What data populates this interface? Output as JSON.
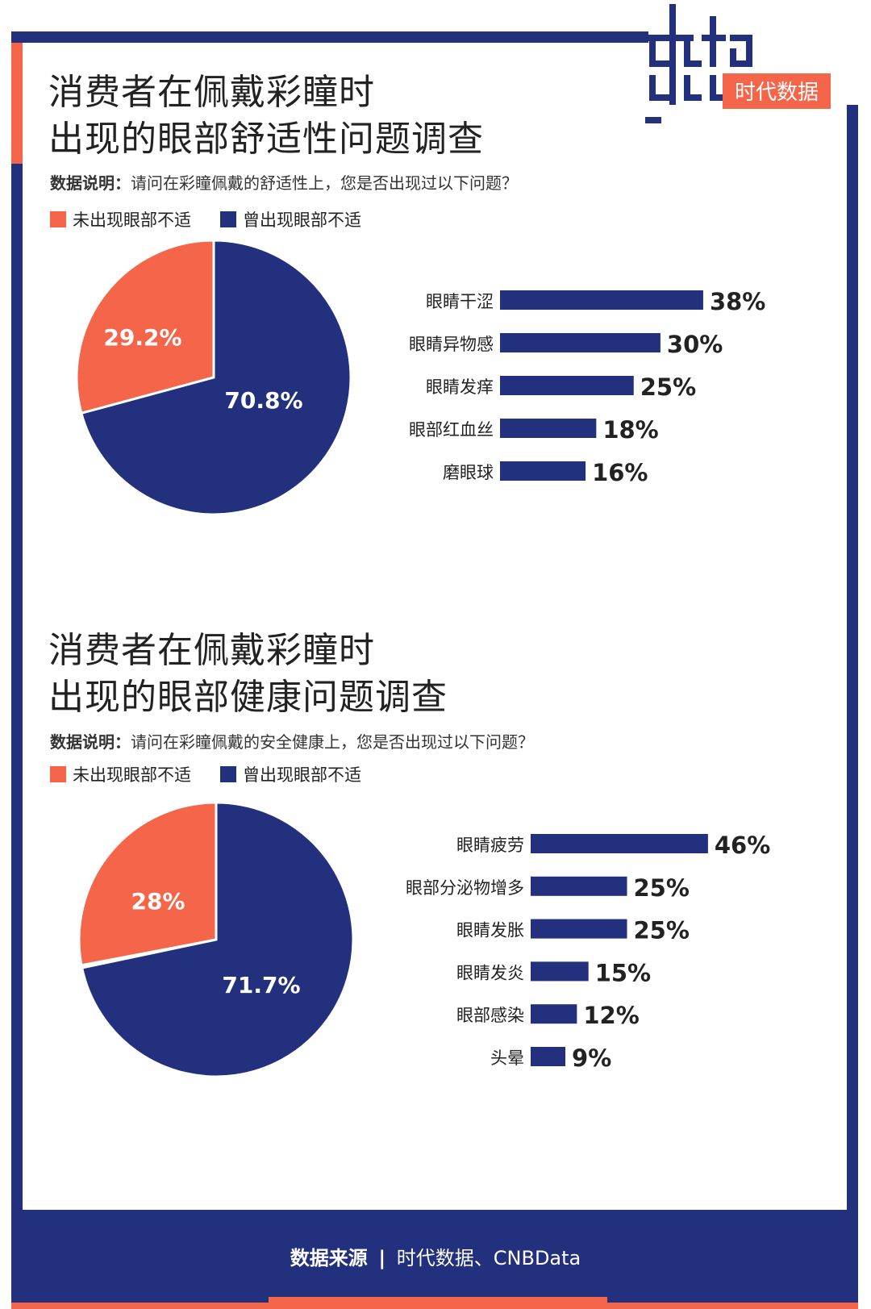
{
  "brand": {
    "logo_text": "data good",
    "logo_cn": "时代数据"
  },
  "colors": {
    "blue": "#22307e",
    "orange": "#f5654a"
  },
  "section1": {
    "title_line1": "消费者在佩戴彩瞳时",
    "title_line2": "出现的眼部舒适性问题调查",
    "note_label": "数据说明：",
    "note_text": "请问在彩瞳佩戴的舒适性上，您是否出现过以下问题？",
    "legend": [
      "未出现眼部不适",
      "曾出现眼部不适"
    ]
  },
  "section2": {
    "title_line1": "消费者在佩戴彩瞳时",
    "title_line2": "出现的眼部健康问题调查",
    "note_label": "数据说明：",
    "note_text": "请问在彩瞳佩戴的安全健康上，您是否出现过以下问题？",
    "legend": [
      "未出现眼部不适",
      "曾出现眼部不适"
    ]
  },
  "chart_data": [
    {
      "type": "pie",
      "categories": [
        "未出现眼部不适",
        "曾出现眼部不适"
      ],
      "values": [
        29.2,
        70.8
      ],
      "labels": [
        "29.2%",
        "70.8%"
      ],
      "colors": [
        "#f5654a",
        "#22307e"
      ]
    },
    {
      "type": "bar",
      "orientation": "horizontal",
      "categories": [
        "眼睛干涩",
        "眼睛异物感",
        "眼睛发痒",
        "眼部红血丝",
        "磨眼球"
      ],
      "values": [
        38,
        30,
        25,
        18,
        16
      ],
      "labels": [
        "38%",
        "30%",
        "25%",
        "18%",
        "16%"
      ],
      "color": "#22307e"
    },
    {
      "type": "pie",
      "categories": [
        "未出现眼部不适",
        "曾出现眼部不适"
      ],
      "values": [
        28,
        71.7
      ],
      "labels": [
        "28%",
        "71.7%"
      ],
      "colors": [
        "#f5654a",
        "#22307e"
      ]
    },
    {
      "type": "bar",
      "orientation": "horizontal",
      "categories": [
        "眼睛疲劳",
        "眼部分泌物增多",
        "眼睛发胀",
        "眼睛发炎",
        "眼部感染",
        "头晕"
      ],
      "values": [
        46,
        25,
        25,
        15,
        12,
        9
      ],
      "labels": [
        "46%",
        "25%",
        "25%",
        "15%",
        "12%",
        "9%"
      ],
      "color": "#22307e"
    }
  ],
  "footer": {
    "label": "数据来源",
    "sep": "|",
    "text": "时代数据、CNBData"
  }
}
